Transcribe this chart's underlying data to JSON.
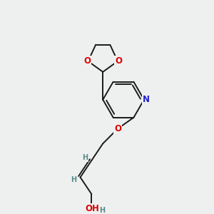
{
  "bg_color": "#eef0f0",
  "bond_color": "#1a1a1a",
  "atom_colors": {
    "O": "#dd0000",
    "N": "#2222cc",
    "C": "#1a1a1a",
    "H": "#5a8a8a",
    "OH_H": "#5a8a8a"
  },
  "font_size_atom": 8.5,
  "font_size_h": 7.0,
  "line_width": 1.4,
  "figsize": [
    3.0,
    3.0
  ],
  "dpi": 100
}
